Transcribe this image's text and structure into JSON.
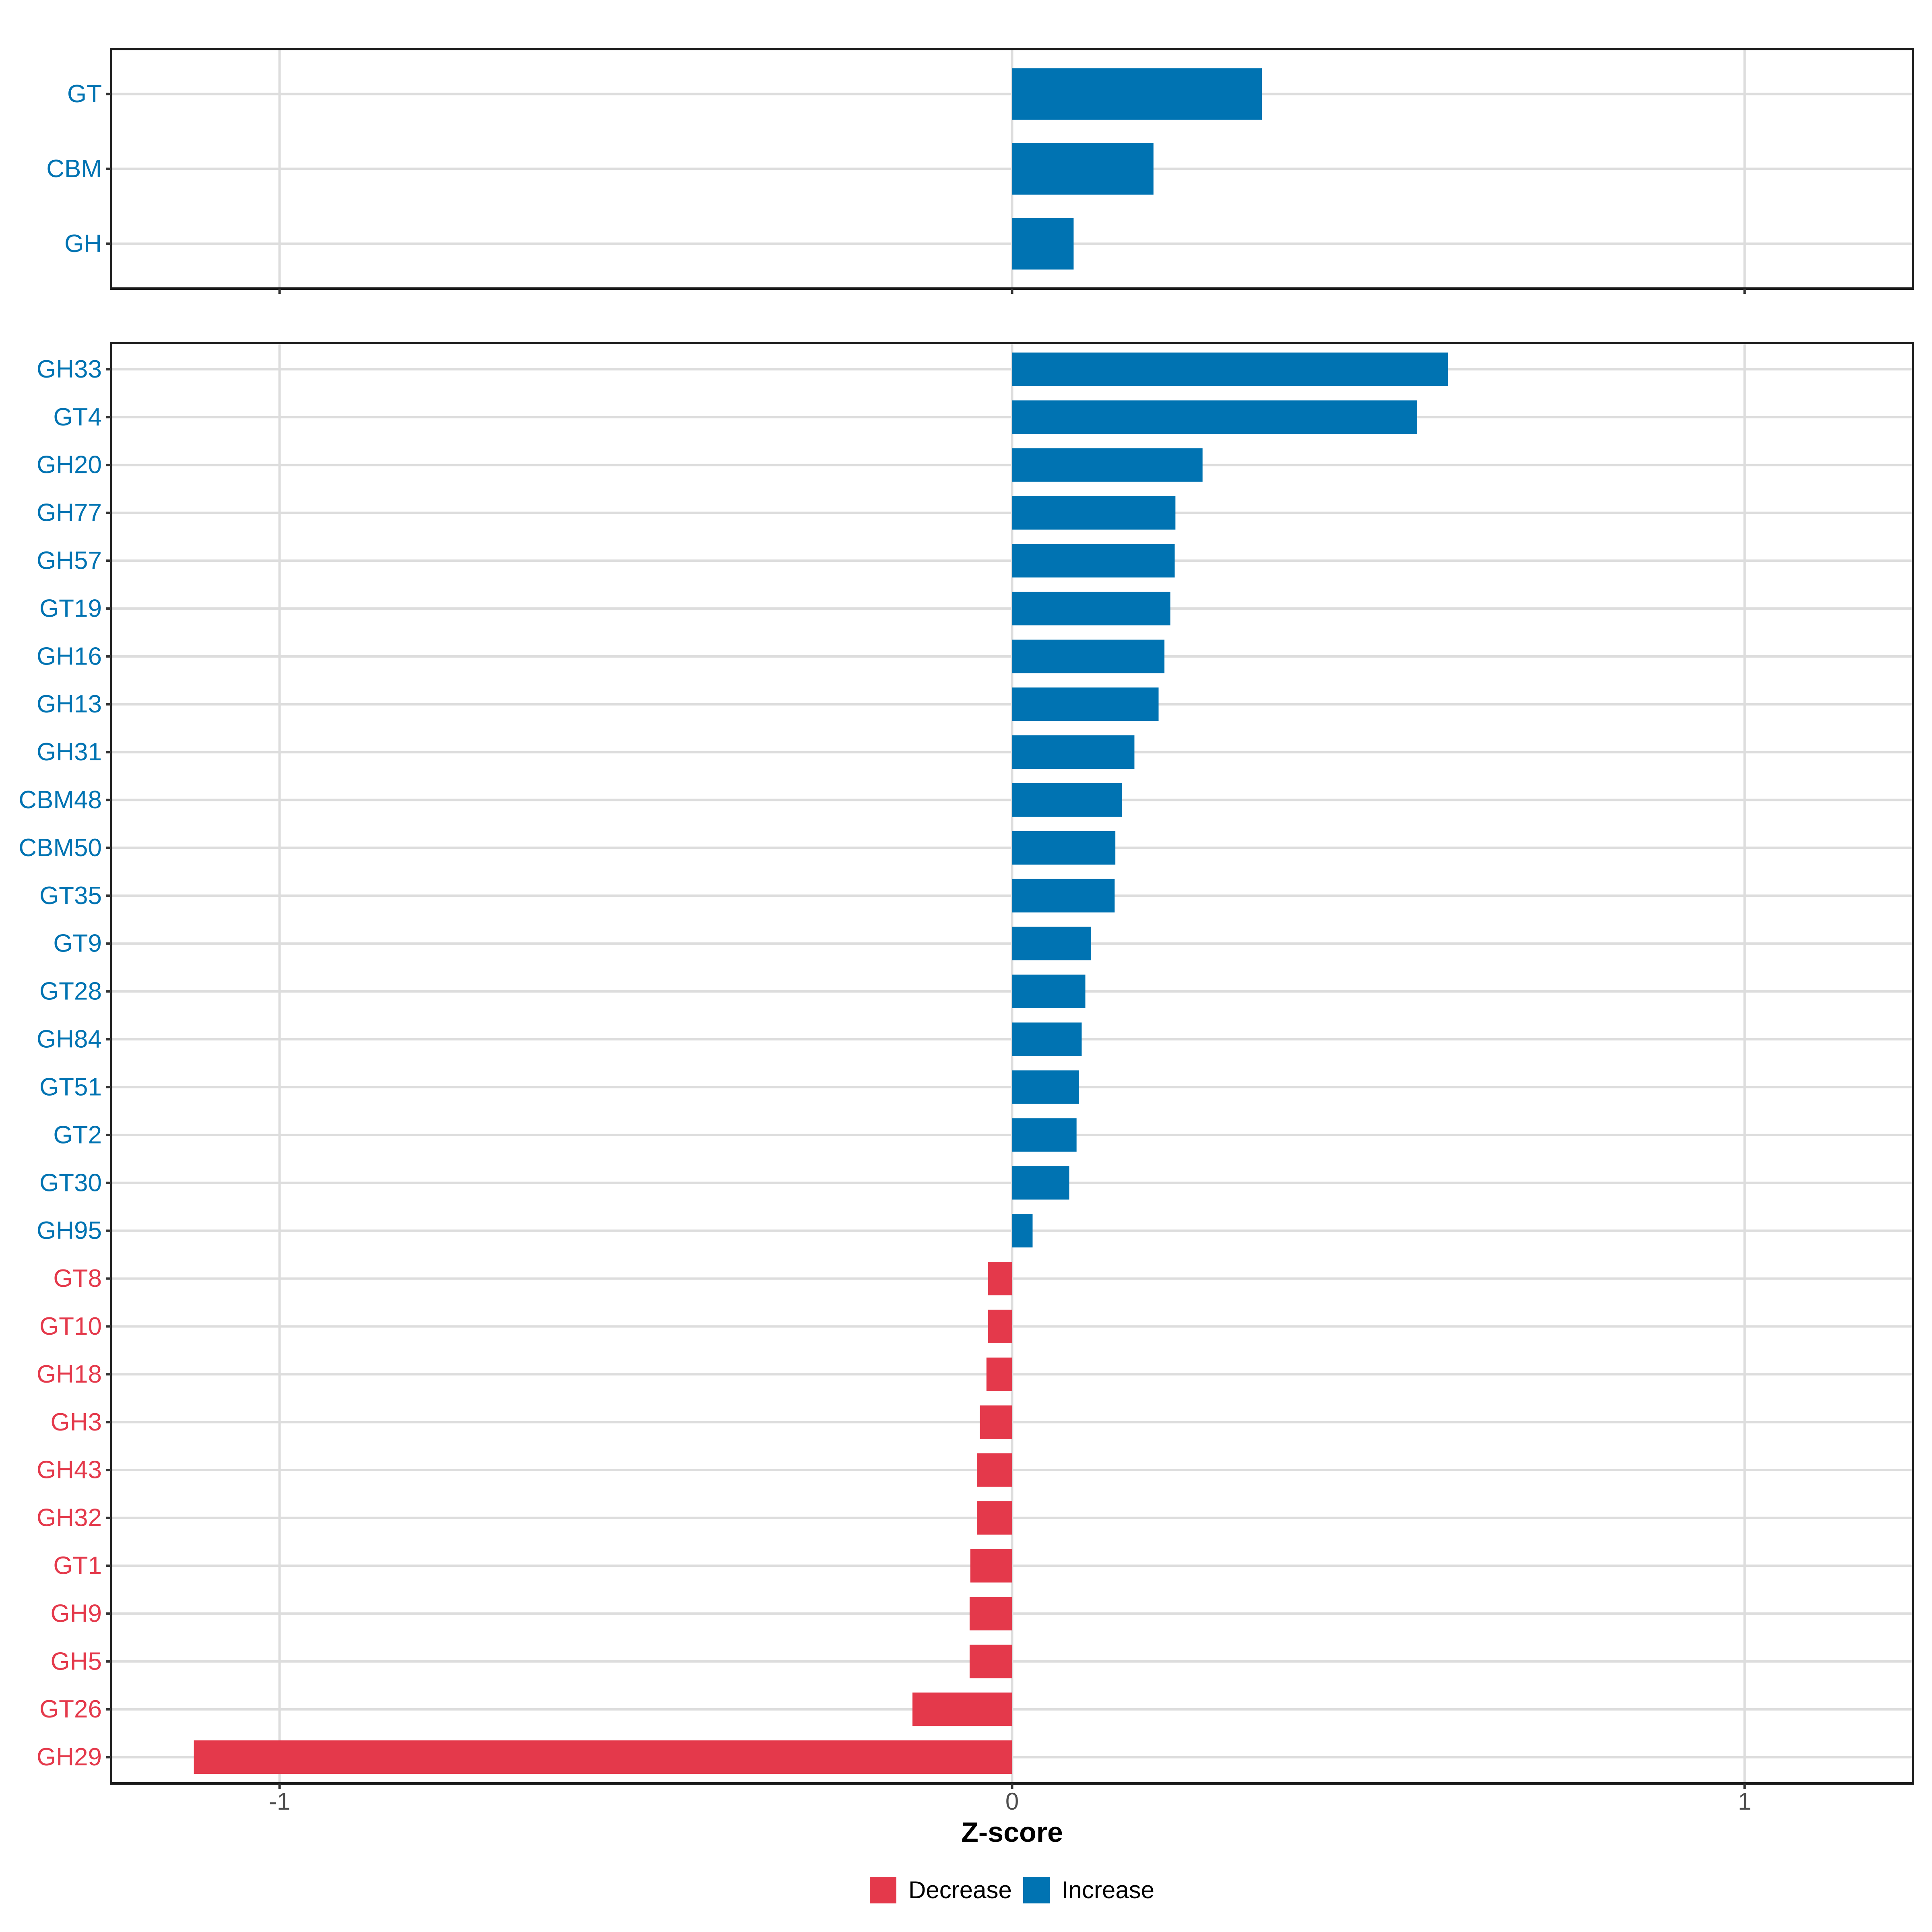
{
  "colors": {
    "increase": "#0073B2",
    "decrease": "#E4394B",
    "grid": "#DDDDDD",
    "panel_border": "#1A1A1A",
    "tick": "#333333",
    "axis_text": "#4D4D4D",
    "axis_title": "#000000",
    "background": "#FFFFFF"
  },
  "axis": {
    "title": "Z-score",
    "ticks": [
      -1,
      0,
      1
    ],
    "tick_labels": [
      "-1",
      "0",
      "1"
    ],
    "domain": [
      -1.23,
      1.23
    ]
  },
  "legend": {
    "items": [
      {
        "label": "Decrease",
        "direction": "Decrease"
      },
      {
        "label": "Increase",
        "direction": "Increase"
      }
    ]
  },
  "chart_data": [
    {
      "type": "bar",
      "orientation": "horizontal",
      "panel": "top",
      "xlabel": "Z-score",
      "xlim": [
        -1.23,
        1.23
      ],
      "grid": "on",
      "bars": [
        {
          "category": "GT",
          "value": 0.341,
          "direction": "Increase"
        },
        {
          "category": "CBM",
          "value": 0.193,
          "direction": "Increase"
        },
        {
          "category": "GH",
          "value": 0.084,
          "direction": "Increase"
        }
      ]
    },
    {
      "type": "bar",
      "orientation": "horizontal",
      "panel": "bottom",
      "xlabel": "Z-score",
      "xlim": [
        -1.23,
        1.23
      ],
      "grid": "on",
      "bars": [
        {
          "category": "GH33",
          "value": 0.595,
          "direction": "Increase"
        },
        {
          "category": "GT4",
          "value": 0.553,
          "direction": "Increase"
        },
        {
          "category": "GH20",
          "value": 0.26,
          "direction": "Increase"
        },
        {
          "category": "GH77",
          "value": 0.223,
          "direction": "Increase"
        },
        {
          "category": "GH57",
          "value": 0.222,
          "direction": "Increase"
        },
        {
          "category": "GT19",
          "value": 0.216,
          "direction": "Increase"
        },
        {
          "category": "GH16",
          "value": 0.208,
          "direction": "Increase"
        },
        {
          "category": "GH13",
          "value": 0.2,
          "direction": "Increase"
        },
        {
          "category": "GH31",
          "value": 0.167,
          "direction": "Increase"
        },
        {
          "category": "CBM48",
          "value": 0.15,
          "direction": "Increase"
        },
        {
          "category": "CBM50",
          "value": 0.141,
          "direction": "Increase"
        },
        {
          "category": "GT35",
          "value": 0.14,
          "direction": "Increase"
        },
        {
          "category": "GT9",
          "value": 0.108,
          "direction": "Increase"
        },
        {
          "category": "GT28",
          "value": 0.1,
          "direction": "Increase"
        },
        {
          "category": "GH84",
          "value": 0.095,
          "direction": "Increase"
        },
        {
          "category": "GT51",
          "value": 0.091,
          "direction": "Increase"
        },
        {
          "category": "GT2",
          "value": 0.088,
          "direction": "Increase"
        },
        {
          "category": "GT30",
          "value": 0.078,
          "direction": "Increase"
        },
        {
          "category": "GH95",
          "value": 0.028,
          "direction": "Increase"
        },
        {
          "category": "GT8",
          "value": -0.033,
          "direction": "Decrease"
        },
        {
          "category": "GT10",
          "value": -0.033,
          "direction": "Decrease"
        },
        {
          "category": "GH18",
          "value": -0.035,
          "direction": "Decrease"
        },
        {
          "category": "GH3",
          "value": -0.044,
          "direction": "Decrease"
        },
        {
          "category": "GH43",
          "value": -0.048,
          "direction": "Decrease"
        },
        {
          "category": "GH32",
          "value": -0.048,
          "direction": "Decrease"
        },
        {
          "category": "GT1",
          "value": -0.057,
          "direction": "Decrease"
        },
        {
          "category": "GH9",
          "value": -0.058,
          "direction": "Decrease"
        },
        {
          "category": "GH5",
          "value": -0.058,
          "direction": "Decrease"
        },
        {
          "category": "GT26",
          "value": -0.136,
          "direction": "Decrease"
        },
        {
          "category": "GH29",
          "value": -1.117,
          "direction": "Decrease"
        }
      ]
    }
  ]
}
